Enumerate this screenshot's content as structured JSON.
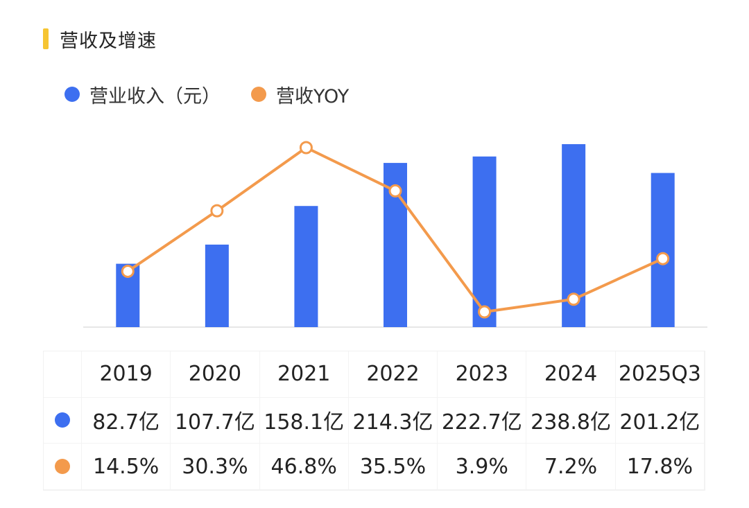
{
  "header": {
    "title": "营收及增速"
  },
  "colors": {
    "accent": "#f6c532",
    "revenue": "#3d6ff0",
    "yoy": "#f39a4c"
  },
  "legend": [
    {
      "label": "营业收入（元）",
      "color": "#3d6ff0"
    },
    {
      "label": "营收YOY",
      "color": "#f39a4c"
    }
  ],
  "chart_data": {
    "type": "bar",
    "categories": [
      "2019",
      "2020",
      "2021",
      "2022",
      "2023",
      "2024",
      "2025Q3"
    ],
    "series": [
      {
        "name": "营业收入（元）",
        "type": "bar",
        "values": [
          82.7,
          107.7,
          158.1,
          214.3,
          222.7,
          238.8,
          201.2
        ],
        "unit": "亿"
      },
      {
        "name": "营收YOY",
        "type": "line",
        "values": [
          14.5,
          30.3,
          46.8,
          35.5,
          3.9,
          7.2,
          17.8
        ],
        "unit": "%"
      }
    ],
    "grid": false,
    "legend_position": "top-left"
  },
  "table": {
    "headers": [
      "2019",
      "2020",
      "2021",
      "2022",
      "2023",
      "2024",
      "2025Q3"
    ],
    "revenue_row": [
      "82.7亿",
      "107.7亿",
      "158.1亿",
      "214.3亿",
      "222.7亿",
      "238.8亿",
      "201.2亿"
    ],
    "yoy_row": [
      "14.5%",
      "30.3%",
      "46.8%",
      "35.5%",
      "3.9%",
      "7.2%",
      "17.8%"
    ]
  }
}
